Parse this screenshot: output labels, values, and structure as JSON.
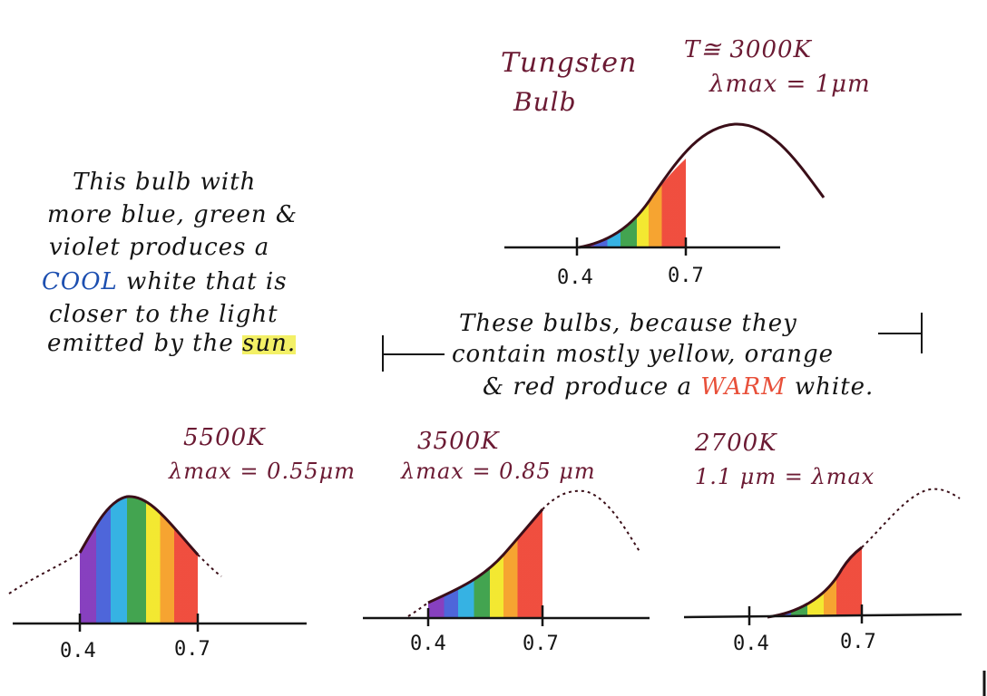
{
  "colors": {
    "ink_maroon": "#6b1a33",
    "ink_black": "#141414",
    "ink_blue": "#1d4fb0",
    "ink_red": "#e8503a",
    "highlight": "#f3f066",
    "spectrum": [
      "#7a2bb8",
      "#3a55d6",
      "#20a9e0",
      "#2e9a3c",
      "#f2e51a",
      "#f59a1a",
      "#ee3b2a"
    ]
  },
  "tungsten": {
    "title_line1": "Tungsten",
    "title_line2": "Bulb",
    "temperature": "T≅ 3000K",
    "lambda_max": "λmax = 1μm",
    "tick_left": "0.4",
    "tick_right": "0.7"
  },
  "cool_note": {
    "line1": "This bulb with",
    "line2": "more blue, green &",
    "line3": "violet produces a",
    "line4_word": "COOL",
    "line4_rest": " white that is",
    "line5": "closer to the light",
    "line6_pre": "emitted by the ",
    "line6_word": "sun."
  },
  "warm_note": {
    "line1": "These bulbs, because they",
    "line2": "contain mostly yellow, orange",
    "line3_pre": "& red produce a ",
    "line3_word": "WARM",
    "line3_post": " white."
  },
  "bulbs": [
    {
      "temperature": "5500K",
      "lambda_max": "λmax = 0.55μm",
      "tick_left": "0.4",
      "tick_right": "0.7"
    },
    {
      "temperature": "3500K",
      "lambda_max": "λmax = 0.85 μm",
      "tick_left": "0.4",
      "tick_right": "0.7"
    },
    {
      "temperature": "2700K",
      "lambda_max": "1.1 μm = λmax",
      "tick_left": "0.4",
      "tick_right": "0.7"
    }
  ]
}
